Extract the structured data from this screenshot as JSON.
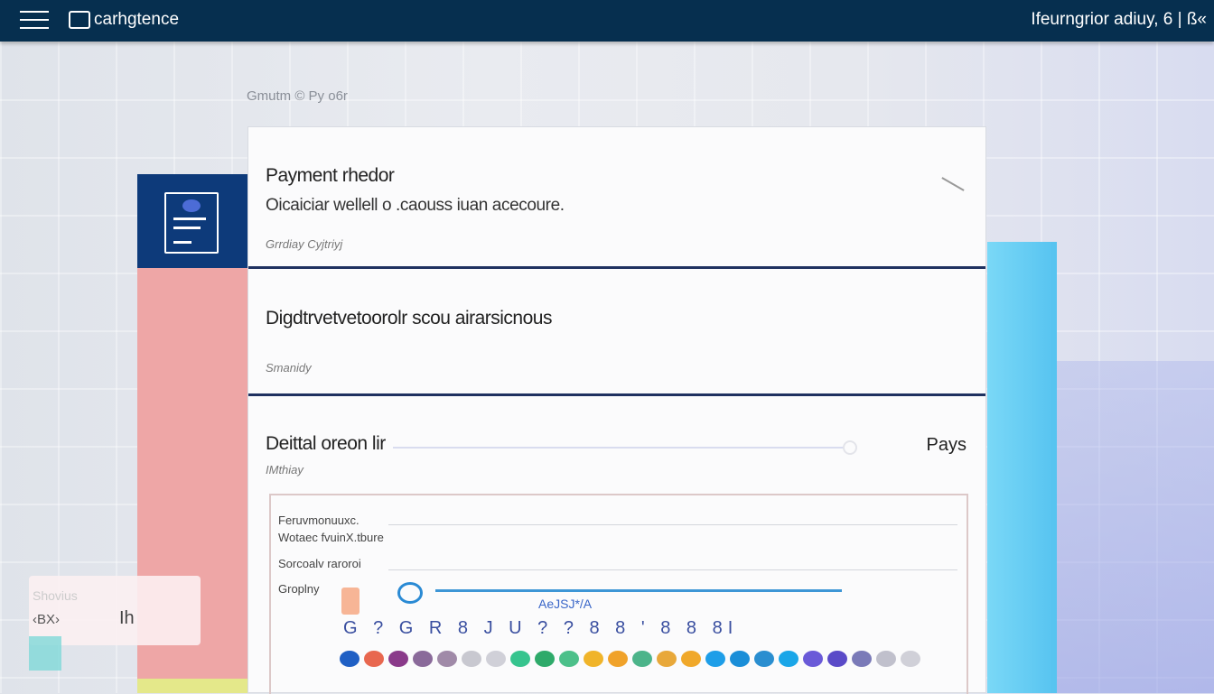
{
  "header": {
    "app_title": "carhgtence",
    "right_text": "Ifeurngrior adiuy, 6 | ß«"
  },
  "breadcrumb": "Gmutm © Py o6r",
  "sections": [
    {
      "title": "Payment rhedor",
      "description": "Oicaiciar wellell o .caouss iuan acecoure.",
      "caption": "Grrdiay Cyjtriyj"
    },
    {
      "title": "Digdtrvetvetoorolr scou airarsicnous",
      "caption": "Smanidy"
    },
    {
      "title": "Deittal oreon lir",
      "caption": "IMthiay",
      "right_label": "Pays"
    }
  ],
  "inner_panel": {
    "rows": [
      "Feruvmonuuxc.",
      "Wotaec fvuinX.tbure",
      "Sorcoalv raroroi",
      "Groplny"
    ],
    "slider_label": "AeJSJ*/A",
    "slider_value": 0.05,
    "glyph_row": "G ? G R   8 J U   ? ? 8 8 ' 8   8 8I",
    "dot_colors": [
      "#1f5fc4",
      "#e8674f",
      "#8a3a8a",
      "#8a6a9a",
      "#a08aa8",
      "#c8c8d0",
      "#d0d0d8",
      "#36c48e",
      "#2eaa6a",
      "#4cc08a",
      "#f0b42a",
      "#f0a22a",
      "#4cb48a",
      "#e8a83a",
      "#f0a82a",
      "#1e9ee8",
      "#1a8ed8",
      "#2a8ed0",
      "#1aa6e8",
      "#6a5ad8",
      "#5a4ac8",
      "#7a7ab8",
      "#c0c0cc",
      "#d0d0d8"
    ]
  },
  "overlay": {
    "label": "Shovius",
    "left": "‹ΒX›",
    "right": "Ih"
  },
  "colors": {
    "header": "#062f4f",
    "accent": "#0d3a7a",
    "divider": "#1f3160",
    "slider": "#3d96d6"
  }
}
